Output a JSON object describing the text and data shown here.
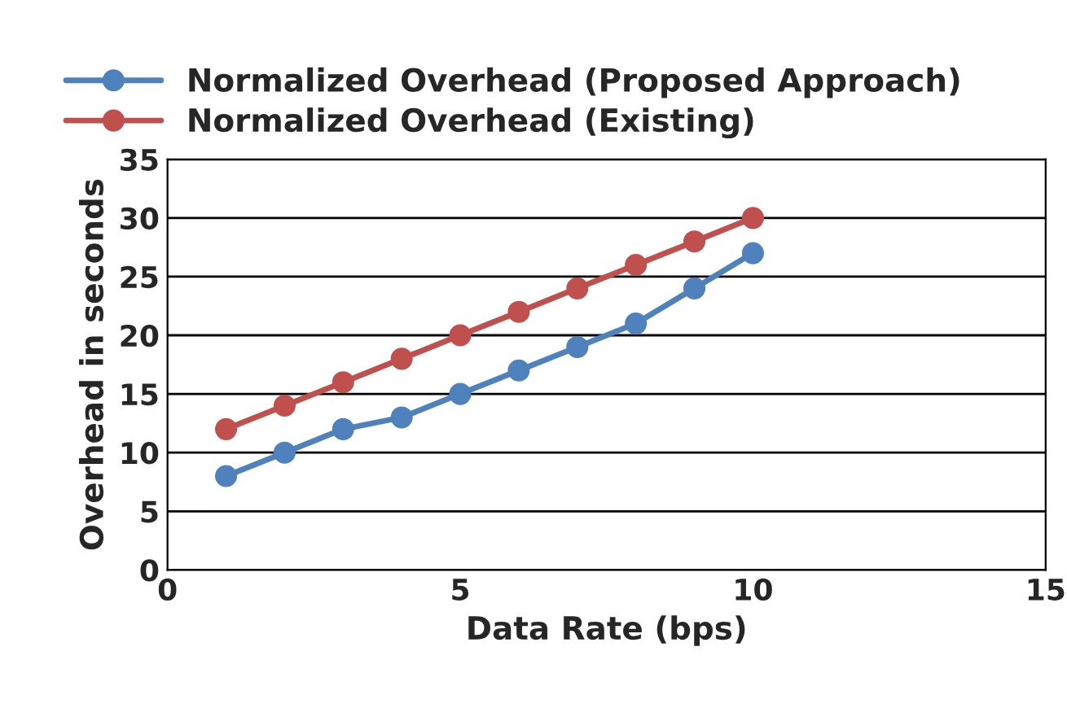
{
  "chart_data": {
    "type": "line",
    "xlabel": "Data Rate (bps)",
    "ylabel": "Overhead in seconds",
    "x": [
      1,
      2,
      3,
      4,
      5,
      6,
      7,
      8,
      9,
      10
    ],
    "series": [
      {
        "name": "Normalized Overhead (Proposed Approach)",
        "color": "#4f81bd",
        "values": [
          8,
          10,
          12,
          13,
          15,
          17,
          19,
          21,
          24,
          27
        ]
      },
      {
        "name": "Normalized Overhead (Existing)",
        "color": "#c0504d",
        "values": [
          12,
          14,
          16,
          18,
          20,
          22,
          24,
          26,
          28,
          30
        ]
      }
    ],
    "xlim": [
      0,
      15
    ],
    "xticks": [
      0,
      5,
      10,
      15
    ],
    "ylim": [
      0,
      35
    ],
    "yticks": [
      0,
      5,
      10,
      15,
      20,
      25,
      30,
      35
    ],
    "grid": "y",
    "legend": "top",
    "marker": "circle",
    "line_style": "solid"
  }
}
